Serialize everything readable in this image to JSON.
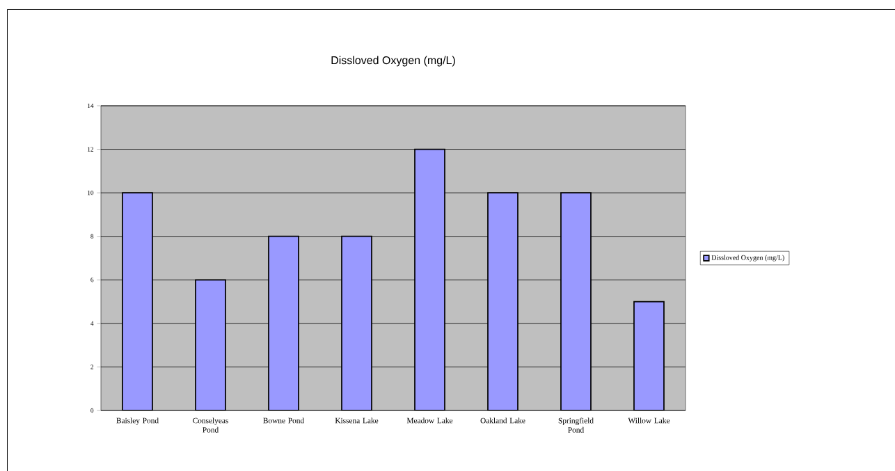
{
  "chart_data": {
    "type": "bar",
    "title": "Dissloved Oxygen (mg/L)",
    "categories": [
      "Baisley Pond",
      "Conselyeas Pond",
      "Bowne Pond",
      "Kissena Lake",
      "Meadow Lake",
      "Oakland Lake",
      "Springfield Pond",
      "Willow Lake"
    ],
    "series": [
      {
        "name": "Dissloved Oxygen (mg/L)",
        "color": "#9999ff",
        "values": [
          10,
          6,
          8,
          8,
          12,
          10,
          10,
          5
        ]
      }
    ],
    "ylim": [
      0,
      14
    ],
    "yticks": [
      0,
      2,
      4,
      6,
      8,
      10,
      12,
      14
    ],
    "grid": "y",
    "legend": "right"
  }
}
